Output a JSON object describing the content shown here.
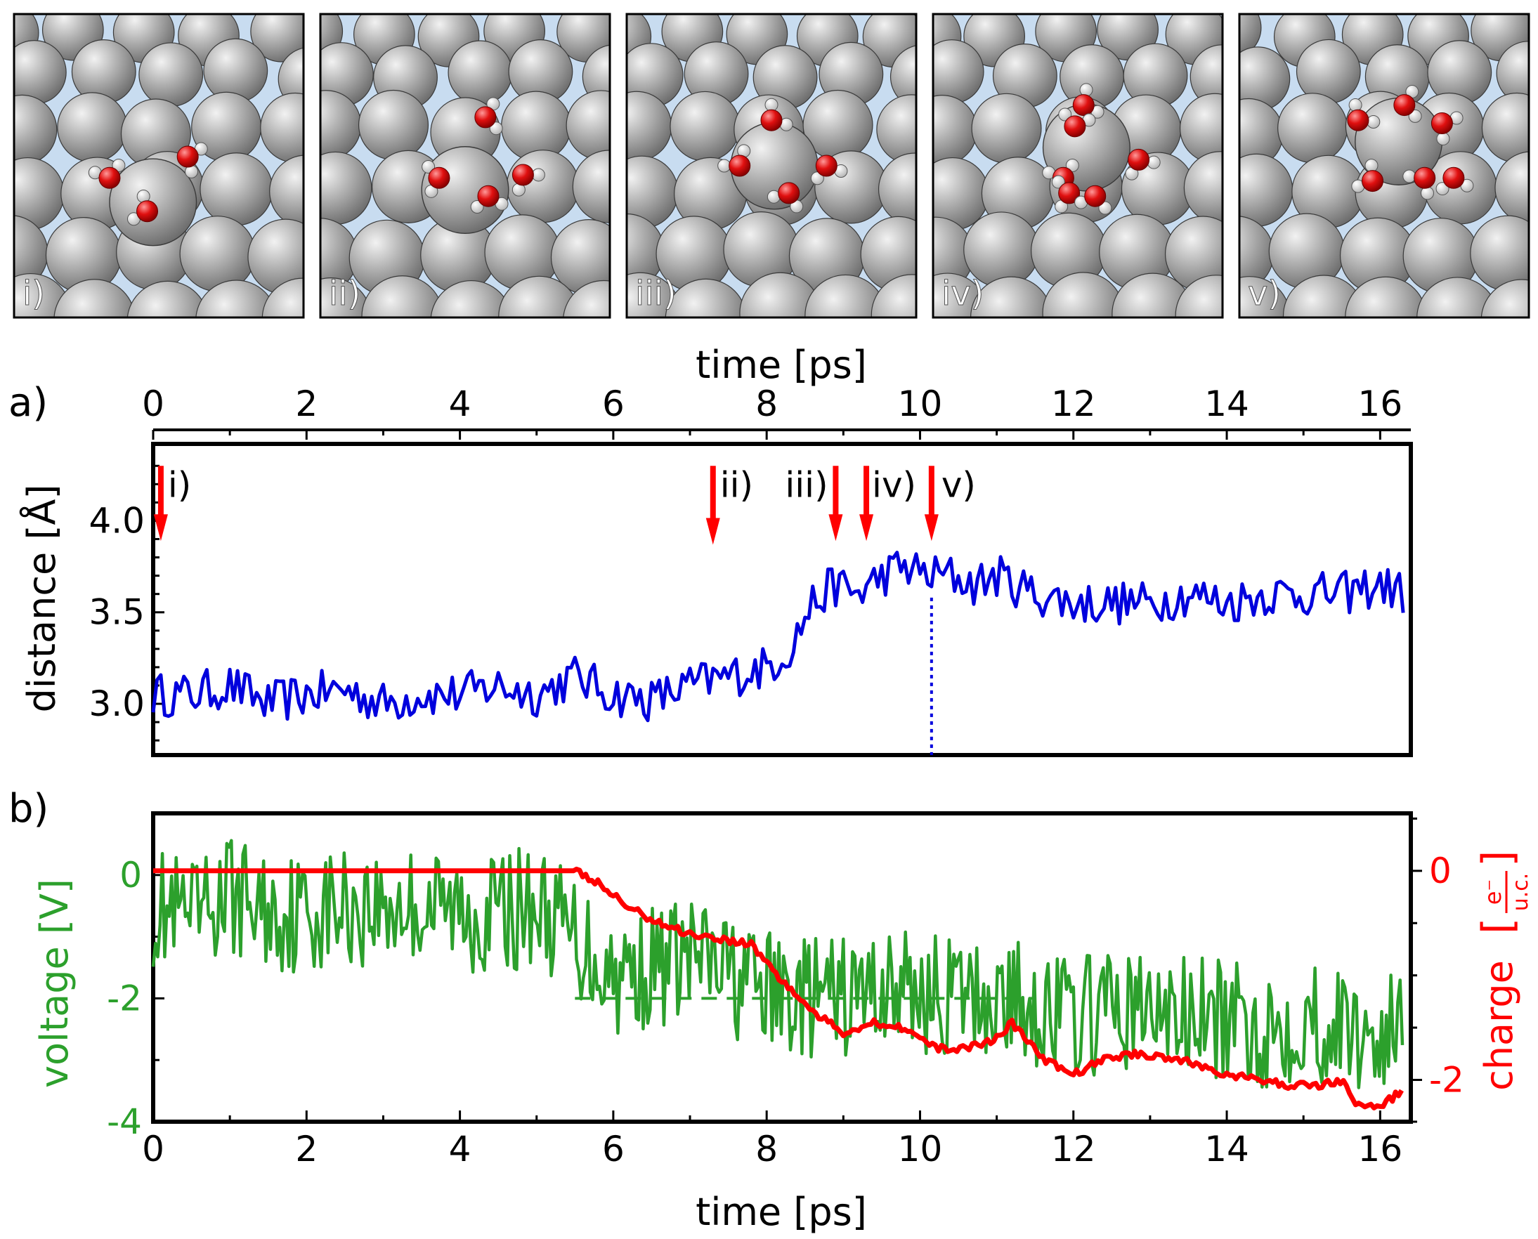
{
  "snapshots": [
    {
      "label": "i)",
      "waters": [
        [
          0.33,
          0.54,
          200
        ],
        [
          0.6,
          0.47,
          -30
        ],
        [
          0.46,
          0.65,
          150
        ]
      ]
    },
    {
      "label": "ii)",
      "waters": [
        [
          0.57,
          0.34,
          -60
        ],
        [
          0.41,
          0.54,
          120
        ],
        [
          0.58,
          0.6,
          30
        ],
        [
          0.7,
          0.53,
          0
        ]
      ]
    },
    {
      "label": "iii)",
      "waters": [
        [
          0.5,
          0.35,
          -90
        ],
        [
          0.39,
          0.5,
          180
        ],
        [
          0.56,
          0.59,
          60
        ],
        [
          0.69,
          0.5,
          20
        ]
      ]
    },
    {
      "label": "iv)",
      "waters": [
        [
          0.52,
          0.3,
          -80
        ],
        [
          0.49,
          0.37,
          -130
        ],
        [
          0.71,
          0.48,
          10
        ],
        [
          0.45,
          0.54,
          200
        ],
        [
          0.47,
          0.59,
          120
        ],
        [
          0.56,
          0.6,
          50
        ]
      ]
    },
    {
      "label": "v)",
      "waters": [
        [
          0.41,
          0.35,
          -100
        ],
        [
          0.57,
          0.3,
          -60
        ],
        [
          0.7,
          0.36,
          -20
        ],
        [
          0.46,
          0.55,
          160
        ],
        [
          0.64,
          0.54,
          80
        ],
        [
          0.74,
          0.54,
          30
        ]
      ]
    }
  ],
  "panel_a": {
    "label": "a)",
    "arrow_labels": [
      "i)",
      "ii)",
      "iii)",
      "iv)",
      "v)"
    ]
  },
  "panel_b": {
    "label": "b)"
  },
  "colors": {
    "distance": "#0000dd",
    "voltage": "#2ca02c",
    "charge": "#ff0000",
    "arrow": "#ff0000",
    "snapshot_sky": "#c8dcf0",
    "atom": "#a8a8a8"
  },
  "chart_data": [
    {
      "type": "line",
      "panel": "a)",
      "xlabel": "time [ps]",
      "ylabel": "distance [Å]",
      "xlim": [
        0,
        16.4
      ],
      "ylim": [
        2.72,
        4.42
      ],
      "xticks": [
        "0",
        "2",
        "4",
        "6",
        "8",
        "10",
        "12",
        "14",
        "16"
      ],
      "yticks": [
        "3.0",
        "3.5",
        "4.0"
      ],
      "x_axis_position": "top",
      "grid": false,
      "markers": [
        {
          "label": "i)",
          "x": 0.1
        },
        {
          "label": "ii)",
          "x": 7.3
        },
        {
          "label": "iii)",
          "x": 8.9
        },
        {
          "label": "iv)",
          "x": 9.3
        },
        {
          "label": "v)",
          "x": 10.15
        }
      ],
      "vline_x": 10.15,
      "series": [
        {
          "x": [
            0,
            0.5,
            1,
            1.5,
            2,
            2.5,
            3,
            3.5,
            4,
            4.5,
            5,
            5.5,
            6,
            6.5,
            7,
            7.5,
            8,
            8.3,
            8.6,
            8.9,
            9.2,
            9.5,
            9.8,
            10.1,
            10.4,
            10.7,
            11,
            11.5,
            12,
            12.5,
            13,
            13.5,
            14,
            14.5,
            15,
            15.5,
            16,
            16.3
          ],
          "y": [
            3.05,
            3.05,
            3.1,
            3.0,
            3.05,
            3.08,
            3.0,
            3.05,
            3.05,
            3.1,
            3.05,
            3.15,
            3.05,
            3.02,
            3.1,
            3.15,
            3.2,
            3.3,
            3.55,
            3.65,
            3.6,
            3.7,
            3.75,
            3.7,
            3.7,
            3.65,
            3.7,
            3.6,
            3.55,
            3.55,
            3.55,
            3.6,
            3.55,
            3.6,
            3.6,
            3.6,
            3.65,
            3.6
          ]
        }
      ]
    },
    {
      "type": "line",
      "panel": "b)",
      "xlabel": "time [ps]",
      "ylabel": "voltage [V]",
      "ylabel_right": "charge",
      "xlim": [
        0,
        16.4
      ],
      "ylim": [
        -4,
        1
      ],
      "y2lim": [
        -2.4,
        0.55
      ],
      "xticks": [
        "0",
        "2",
        "4",
        "6",
        "8",
        "10",
        "12",
        "14",
        "16"
      ],
      "yticks": [
        "0",
        "-2",
        "-4"
      ],
      "y2ticks": [
        "0",
        "-2"
      ],
      "grid": false,
      "series": [
        {
          "name": "voltage",
          "x": [
            0,
            0.5,
            1,
            1.5,
            2,
            2.5,
            3,
            3.5,
            4,
            4.5,
            5,
            5.5,
            6,
            6.5,
            7,
            7.5,
            8,
            8.5,
            9,
            9.5,
            10,
            10.5,
            11,
            11.5,
            12,
            12.5,
            13,
            13.5,
            14,
            14.5,
            15,
            15.5,
            16,
            16.3
          ],
          "y": [
            -0.5,
            -0.8,
            -0.3,
            -0.6,
            -0.6,
            -0.5,
            -0.5,
            -0.5,
            -0.6,
            -0.6,
            -0.5,
            -1.0,
            -1.6,
            -1.5,
            -1.3,
            -1.6,
            -1.9,
            -2.0,
            -2.0,
            -1.8,
            -1.9,
            -2.0,
            -2.0,
            -2.1,
            -2.3,
            -2.2,
            -2.2,
            -2.3,
            -2.4,
            -2.5,
            -2.3,
            -2.5,
            -2.6,
            -2.5
          ]
        },
        {
          "name": "charge",
          "x": [
            0,
            5.5,
            5.8,
            6.2,
            6.6,
            7.0,
            7.4,
            7.8,
            8.2,
            8.6,
            9.0,
            9.4,
            9.8,
            10.2,
            10.6,
            11.0,
            11.2,
            11.6,
            12.0,
            12.4,
            12.8,
            13.2,
            13.6,
            14.0,
            14.4,
            14.8,
            15.2,
            15.5,
            15.7,
            16.0,
            16.3
          ],
          "y": [
            0,
            0,
            -0.12,
            -0.35,
            -0.5,
            -0.6,
            -0.65,
            -0.7,
            -1.05,
            -1.35,
            -1.55,
            -1.45,
            -1.5,
            -1.7,
            -1.7,
            -1.6,
            -1.45,
            -1.8,
            -1.95,
            -1.8,
            -1.75,
            -1.78,
            -1.85,
            -1.95,
            -2.0,
            -2.05,
            -2.05,
            -2.0,
            -2.25,
            -2.25,
            -2.1
          ]
        }
      ],
      "hline": {
        "y": -2,
        "xrange": [
          5.5,
          11.5
        ],
        "style": "dashed",
        "color": "#2ca02c"
      }
    }
  ]
}
